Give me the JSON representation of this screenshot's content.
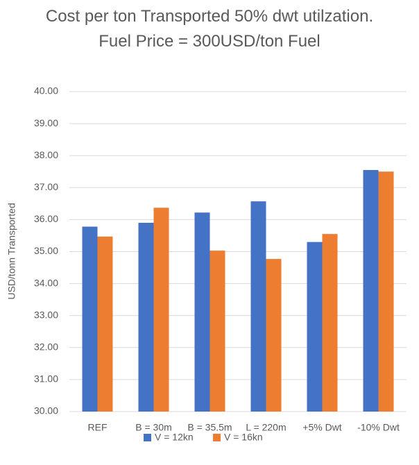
{
  "chart_data": {
    "type": "bar",
    "title": "Cost per ton Transported 50% dwt utilzation.  Fuel Price = 300USD/ton Fuel",
    "y_label": "USD/tonn Transported",
    "categories": [
      "REF",
      "B = 30m",
      "B = 35.5m",
      "L = 220m",
      "+5% Dwt",
      "-10% Dwt"
    ],
    "series": [
      {
        "name": "V = 12kn",
        "color": "#4472c4",
        "values": [
          35.78,
          35.9,
          36.22,
          36.57,
          35.3,
          37.55
        ]
      },
      {
        "name": "V = 16kn",
        "color": "#ed7d31",
        "values": [
          35.47,
          36.37,
          35.03,
          34.77,
          35.55,
          37.5
        ]
      }
    ],
    "ylim": [
      30,
      40
    ],
    "yticks": [
      {
        "value": 30,
        "label": "30.00"
      },
      {
        "value": 31,
        "label": "31.00"
      },
      {
        "value": 32,
        "label": "32.00"
      },
      {
        "value": 33,
        "label": "33.00"
      },
      {
        "value": 34,
        "label": "34.00"
      },
      {
        "value": 35,
        "label": "35.00"
      },
      {
        "value": 36,
        "label": "36.00"
      },
      {
        "value": 37,
        "label": "37.00"
      },
      {
        "value": 38,
        "label": "38.00"
      },
      {
        "value": 39,
        "label": "39.00"
      },
      {
        "value": 40,
        "label": "40.00"
      }
    ],
    "grid": true,
    "legend": "bottom"
  }
}
